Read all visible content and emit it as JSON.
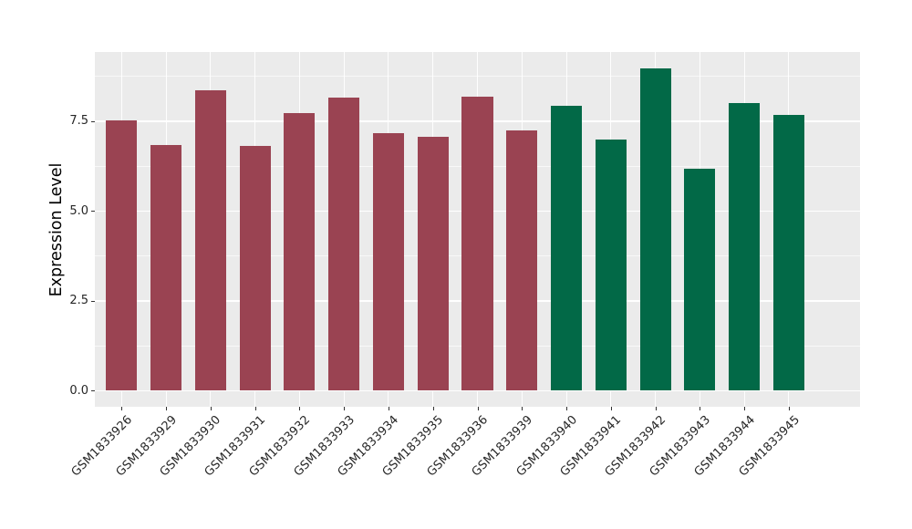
{
  "figure": {
    "background": "#FFFFFF",
    "panel_background": "#EBEBEB",
    "gridline_color": "#FFFFFF",
    "tick_color": "#333333",
    "axis_text_color": "#262626",
    "axis_title_color": "#000000"
  },
  "chart_data": {
    "type": "bar",
    "title": "",
    "xlabel": "",
    "ylabel": "Expression Level",
    "legend": "none",
    "grid": "white major+minor horizontal lines and vertical lines at category centers on grey panel",
    "categories": [
      "GSM1833926",
      "GSM1833929",
      "GSM1833930",
      "GSM1833931",
      "GSM1833932",
      "GSM1833933",
      "GSM1833934",
      "GSM1833935",
      "GSM1833936",
      "GSM1833939",
      "GSM1833940",
      "GSM1833941",
      "GSM1833942",
      "GSM1833943",
      "GSM1833944",
      "GSM1833945"
    ],
    "values": [
      7.53,
      6.83,
      8.37,
      6.81,
      7.73,
      8.15,
      7.17,
      7.07,
      8.18,
      7.24,
      7.94,
      7.0,
      8.98,
      6.17,
      8.01,
      7.69
    ],
    "bar_groups": [
      "groupA",
      "groupA",
      "groupA",
      "groupA",
      "groupA",
      "groupA",
      "groupA",
      "groupA",
      "groupA",
      "groupA",
      "groupB",
      "groupB",
      "groupB",
      "groupB",
      "groupB",
      "groupB"
    ],
    "group_colors": {
      "groupA": "#9A4352",
      "groupB": "#026947"
    },
    "yticks": [
      0,
      2.5,
      5.0,
      7.5
    ],
    "ytick_labels": [
      "0.0",
      "2.5",
      "5.0",
      "7.5"
    ],
    "yticks_minor": [
      1.25,
      3.75,
      6.25,
      8.75
    ],
    "ylim": [
      -0.45,
      9.43
    ],
    "xtick_angle_deg": 45,
    "bar_width_fraction": 0.7
  }
}
